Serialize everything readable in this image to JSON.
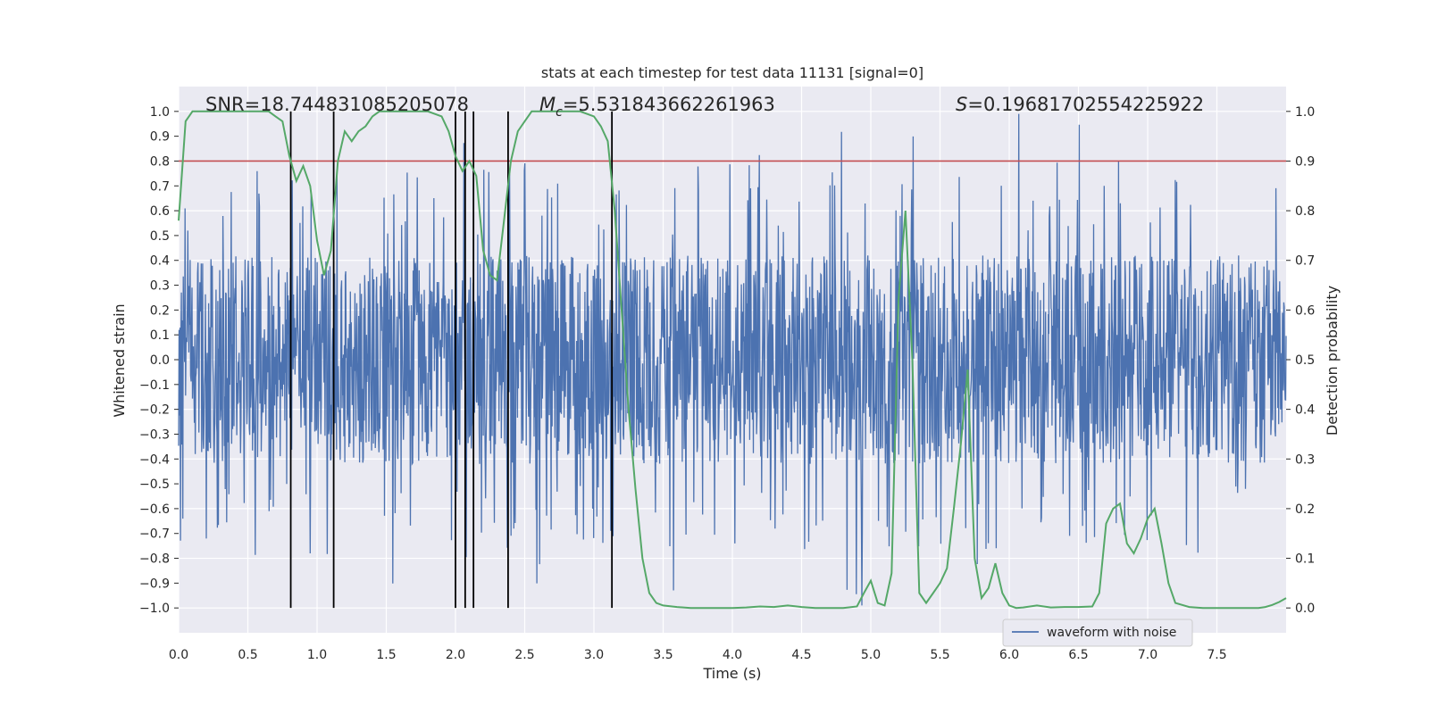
{
  "chart_data": {
    "type": "line",
    "title": "stats at each timestep for test data 11131 [signal=0]",
    "xlabel": "Time (s)",
    "ylabel_left": "Whitened strain",
    "ylabel_right": "Detection probability",
    "xlim": [
      0.0,
      8.0
    ],
    "ylim_left": [
      -1.1,
      1.1
    ],
    "ylim_right": [
      -0.05,
      1.05
    ],
    "grid": true,
    "background": "#eaeaf2",
    "x_ticks": [
      "0.0",
      "0.5",
      "1.0",
      "1.5",
      "2.0",
      "2.5",
      "3.0",
      "3.5",
      "4.0",
      "4.5",
      "5.0",
      "5.5",
      "6.0",
      "6.5",
      "7.0",
      "7.5"
    ],
    "x_tick_values": [
      0,
      0.5,
      1,
      1.5,
      2,
      2.5,
      3,
      3.5,
      4,
      4.5,
      5,
      5.5,
      6,
      6.5,
      7,
      7.5
    ],
    "y_left_ticks": [
      "1.0",
      "0.9",
      "0.8",
      "0.7",
      "0.6",
      "0.5",
      "0.4",
      "0.3",
      "0.2",
      "0.1",
      "0.0",
      "−0.1",
      "−0.2",
      "−0.3",
      "−0.4",
      "−0.5",
      "−0.6",
      "−0.7",
      "−0.8",
      "−0.9",
      "−1.0"
    ],
    "y_left_tick_values": [
      1.0,
      0.9,
      0.8,
      0.7,
      0.6,
      0.5,
      0.4,
      0.3,
      0.2,
      0.1,
      0.0,
      -0.1,
      -0.2,
      -0.3,
      -0.4,
      -0.5,
      -0.6,
      -0.7,
      -0.8,
      -0.9,
      -1.0
    ],
    "y_right_ticks": [
      "1.0",
      "0.9",
      "0.8",
      "0.7",
      "0.6",
      "0.5",
      "0.4",
      "0.3",
      "0.2",
      "0.1",
      "0.0"
    ],
    "y_right_tick_values": [
      1.0,
      0.9,
      0.8,
      0.7,
      0.6,
      0.5,
      0.4,
      0.3,
      0.2,
      0.1,
      0.0
    ],
    "annotations": {
      "snr": "SNR=18.744831085205078",
      "mc_symbol": "M",
      "mc_subscript": "c",
      "mc_value": "=5.531843662261963",
      "s_symbol": "S",
      "s_value": "=0.19681702554225922"
    },
    "threshold": {
      "value": 0.9,
      "axis": "right",
      "color": "#c44e52"
    },
    "vertical_markers": {
      "x": [
        0.81,
        1.12,
        2.0,
        2.07,
        2.13,
        2.38,
        3.13
      ],
      "color": "#000000"
    },
    "waveform": {
      "name": "waveform with noise",
      "color": "#4c72b0",
      "approx_band": [
        -0.42,
        0.42
      ],
      "typical_peak_range": [
        0.5,
        0.8
      ],
      "max_peak": 0.99,
      "min_trough": -0.99,
      "samples": 2400
    },
    "probability": {
      "color": "#55a868",
      "x": [
        0,
        0.05,
        0.1,
        0.2,
        0.3,
        0.4,
        0.5,
        0.6,
        0.65,
        0.7,
        0.75,
        0.8,
        0.85,
        0.9,
        0.95,
        1.0,
        1.05,
        1.1,
        1.15,
        1.2,
        1.25,
        1.3,
        1.35,
        1.4,
        1.45,
        1.5,
        1.6,
        1.7,
        1.8,
        1.9,
        1.95,
        2.0,
        2.05,
        2.1,
        2.15,
        2.2,
        2.25,
        2.3,
        2.35,
        2.4,
        2.45,
        2.5,
        2.55,
        2.6,
        2.7,
        2.8,
        2.9,
        3.0,
        3.05,
        3.1,
        3.15,
        3.2,
        3.25,
        3.3,
        3.35,
        3.4,
        3.45,
        3.5,
        3.6,
        3.7,
        3.8,
        3.9,
        4.0,
        4.1,
        4.2,
        4.3,
        4.4,
        4.5,
        4.6,
        4.7,
        4.8,
        4.9,
        4.95,
        5.0,
        5.05,
        5.1,
        5.15,
        5.2,
        5.25,
        5.3,
        5.35,
        5.4,
        5.45,
        5.5,
        5.55,
        5.6,
        5.65,
        5.7,
        5.75,
        5.8,
        5.85,
        5.9,
        5.95,
        6.0,
        6.05,
        6.1,
        6.2,
        6.3,
        6.4,
        6.5,
        6.6,
        6.65,
        6.7,
        6.75,
        6.8,
        6.85,
        6.9,
        6.95,
        7.0,
        7.05,
        7.1,
        7.15,
        7.2,
        7.3,
        7.4,
        7.5,
        7.6,
        7.7,
        7.8,
        7.85,
        7.9,
        7.95,
        8.0
      ],
      "y": [
        0.78,
        0.98,
        1.0,
        1.0,
        1.0,
        1.0,
        1.0,
        1.0,
        1.0,
        0.99,
        0.98,
        0.91,
        0.86,
        0.89,
        0.85,
        0.74,
        0.67,
        0.72,
        0.9,
        0.96,
        0.94,
        0.96,
        0.97,
        0.99,
        1.0,
        1.0,
        1.0,
        1.0,
        1.0,
        0.99,
        0.96,
        0.91,
        0.88,
        0.9,
        0.87,
        0.72,
        0.67,
        0.66,
        0.78,
        0.9,
        0.96,
        0.98,
        1.0,
        1.0,
        1.0,
        1.0,
        1.0,
        0.99,
        0.97,
        0.94,
        0.8,
        0.6,
        0.4,
        0.24,
        0.1,
        0.03,
        0.01,
        0.005,
        0.002,
        0.0,
        0.0,
        0.0,
        0.0,
        0.001,
        0.003,
        0.002,
        0.005,
        0.002,
        0.0,
        0.0,
        0.0,
        0.003,
        0.03,
        0.055,
        0.01,
        0.005,
        0.07,
        0.62,
        0.8,
        0.5,
        0.03,
        0.01,
        0.03,
        0.05,
        0.08,
        0.2,
        0.33,
        0.48,
        0.1,
        0.02,
        0.04,
        0.09,
        0.03,
        0.005,
        0.0,
        0.001,
        0.005,
        0.001,
        0.002,
        0.002,
        0.003,
        0.03,
        0.17,
        0.2,
        0.21,
        0.13,
        0.11,
        0.14,
        0.18,
        0.2,
        0.13,
        0.05,
        0.01,
        0.002,
        0.0,
        0.0,
        0.0,
        0.0,
        0.0,
        0.002,
        0.006,
        0.012,
        0.02
      ]
    },
    "legend": {
      "label": "waveform with noise",
      "location": "lower-right"
    }
  }
}
